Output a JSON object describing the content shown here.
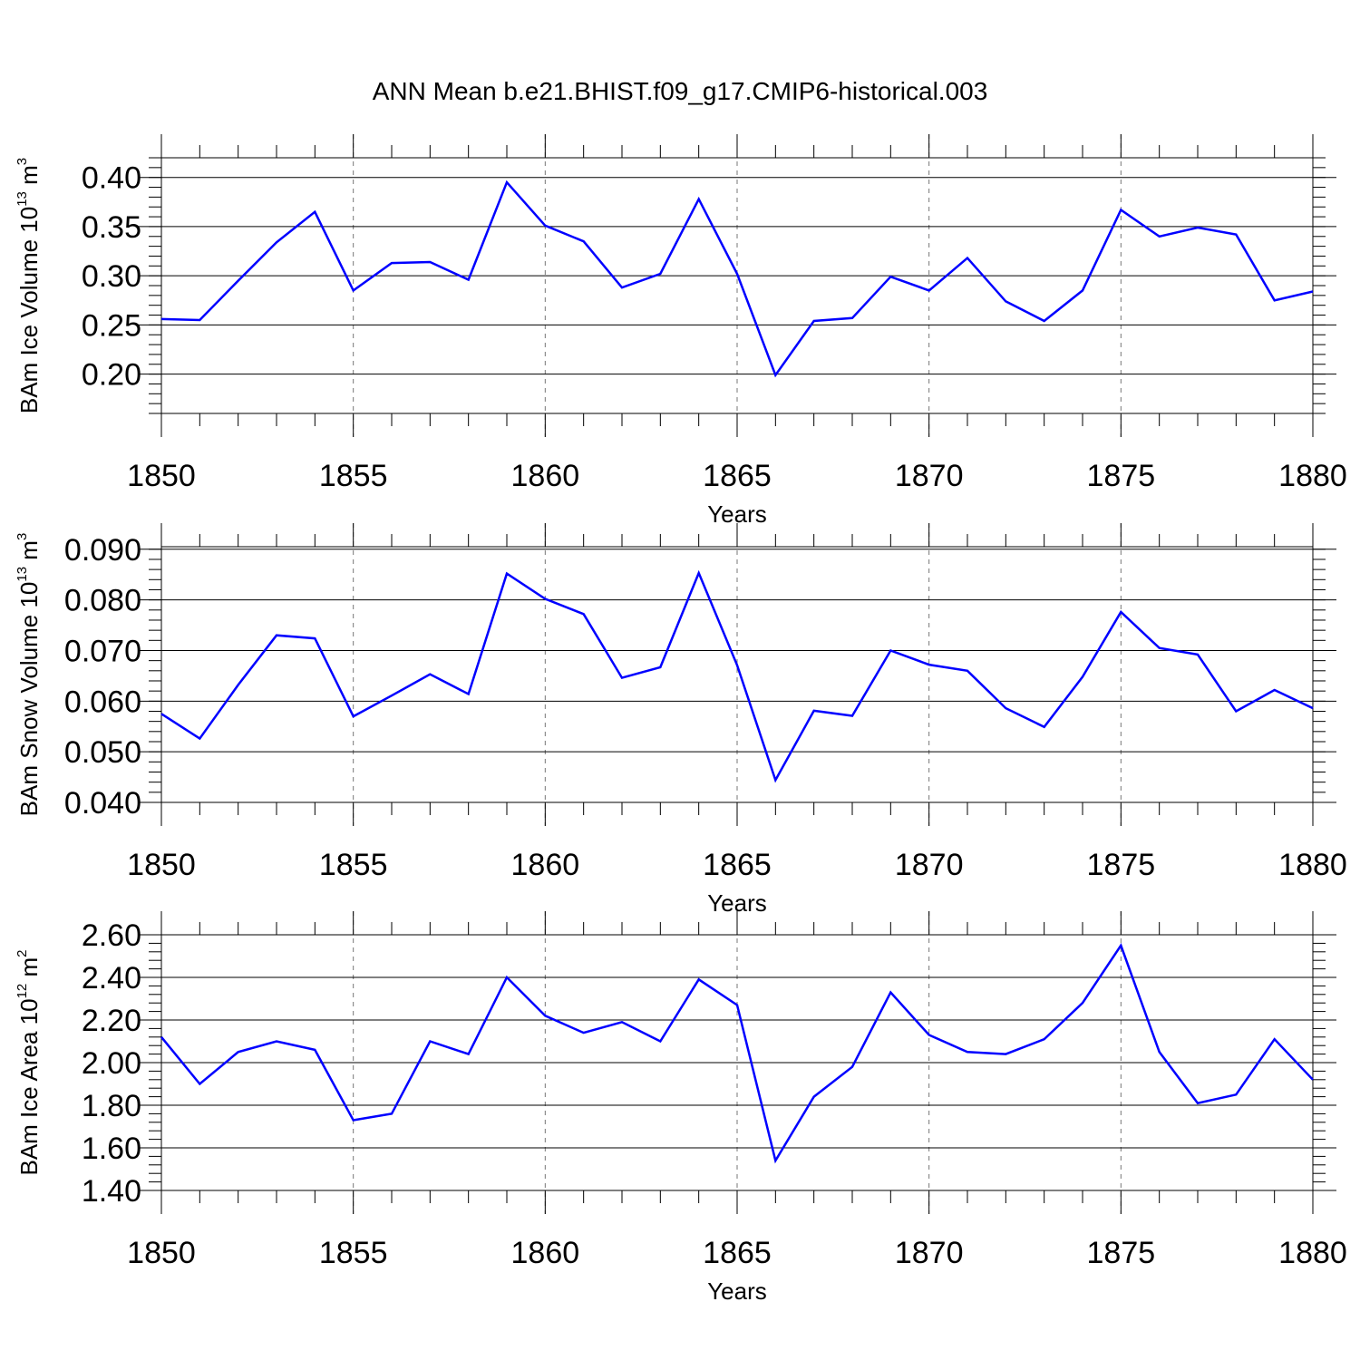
{
  "title": "ANN Mean b.e21.BHIST.f09_g17.CMIP6-historical.003",
  "colors": {
    "line": "#0000ff",
    "axis": "#000000",
    "grid": "#777777"
  },
  "chart_data": [
    {
      "type": "line",
      "title": "ANN Mean b.e21.BHIST.f09_g17.CMIP6-historical.003",
      "xlabel": "Years",
      "ylabel_text": "BAm Ice Volume 10",
      "ylabel_exp": "13",
      "ylabel_unit": " m",
      "ylabel_unit_exp": "3",
      "xlim": [
        1850,
        1880
      ],
      "ylim": [
        0.16,
        0.42
      ],
      "x_ticks": [
        1850,
        1855,
        1860,
        1865,
        1870,
        1875,
        1880
      ],
      "x_tick_labels": [
        "1850",
        "1855",
        "1860",
        "1865",
        "1870",
        "1875",
        "1880"
      ],
      "y_ticks": [
        0.2,
        0.25,
        0.3,
        0.35,
        0.4
      ],
      "y_tick_labels": [
        "0.20",
        "0.25",
        "0.30",
        "0.35",
        "0.40"
      ],
      "y_minor_step": 0.01,
      "x": [
        1850,
        1851,
        1852,
        1853,
        1854,
        1855,
        1856,
        1857,
        1858,
        1859,
        1860,
        1861,
        1862,
        1863,
        1864,
        1865,
        1866,
        1867,
        1868,
        1869,
        1870,
        1871,
        1872,
        1873,
        1874,
        1875,
        1876,
        1877,
        1878,
        1879,
        1880
      ],
      "series": [
        {
          "name": "BAm Ice Volume",
          "values": [
            0.256,
            0.255,
            0.295,
            0.334,
            0.365,
            0.285,
            0.313,
            0.314,
            0.296,
            0.395,
            0.351,
            0.335,
            0.288,
            0.302,
            0.378,
            0.302,
            0.199,
            0.254,
            0.257,
            0.299,
            0.285,
            0.318,
            0.274,
            0.254,
            0.285,
            0.367,
            0.34,
            0.349,
            0.342,
            0.275,
            0.284
          ]
        }
      ]
    },
    {
      "type": "line",
      "xlabel": "Years",
      "ylabel_text": "BAm Snow Volume 10",
      "ylabel_exp": "13",
      "ylabel_unit": " m",
      "ylabel_unit_exp": "3",
      "xlim": [
        1850,
        1880
      ],
      "ylim": [
        0.04,
        0.0905
      ],
      "x_ticks": [
        1850,
        1855,
        1860,
        1865,
        1870,
        1875,
        1880
      ],
      "x_tick_labels": [
        "1850",
        "1855",
        "1860",
        "1865",
        "1870",
        "1875",
        "1880"
      ],
      "y_ticks": [
        0.04,
        0.05,
        0.06,
        0.07,
        0.08,
        0.09
      ],
      "y_tick_labels": [
        "0.040",
        "0.050",
        "0.060",
        "0.070",
        "0.080",
        "0.090"
      ],
      "y_minor_step": 0.002,
      "x": [
        1850,
        1851,
        1852,
        1853,
        1854,
        1855,
        1856,
        1857,
        1858,
        1859,
        1860,
        1861,
        1862,
        1863,
        1864,
        1865,
        1866,
        1867,
        1868,
        1869,
        1870,
        1871,
        1872,
        1873,
        1874,
        1875,
        1876,
        1877,
        1878,
        1879,
        1880
      ],
      "series": [
        {
          "name": "BAm Snow Volume",
          "values": [
            0.0575,
            0.0526,
            0.0632,
            0.073,
            0.0724,
            0.057,
            0.0611,
            0.0653,
            0.0614,
            0.0852,
            0.0802,
            0.0772,
            0.0646,
            0.0667,
            0.0853,
            0.0671,
            0.0444,
            0.0581,
            0.0571,
            0.07,
            0.0672,
            0.066,
            0.0586,
            0.0549,
            0.0648,
            0.0776,
            0.0705,
            0.0692,
            0.058,
            0.0622,
            0.0586
          ]
        }
      ]
    },
    {
      "type": "line",
      "xlabel": "Years",
      "ylabel_text": "BAm Ice Area 10",
      "ylabel_exp": "12",
      "ylabel_unit": " m",
      "ylabel_unit_exp": "2",
      "xlim": [
        1850,
        1880
      ],
      "ylim": [
        1.4,
        2.6
      ],
      "x_ticks": [
        1850,
        1855,
        1860,
        1865,
        1870,
        1875,
        1880
      ],
      "x_tick_labels": [
        "1850",
        "1855",
        "1860",
        "1865",
        "1870",
        "1875",
        "1880"
      ],
      "y_ticks": [
        1.4,
        1.6,
        1.8,
        2.0,
        2.2,
        2.4,
        2.6
      ],
      "y_tick_labels": [
        "1.40",
        "1.60",
        "1.80",
        "2.00",
        "2.20",
        "2.40",
        "2.60"
      ],
      "y_minor_step": 0.04,
      "x": [
        1850,
        1851,
        1852,
        1853,
        1854,
        1855,
        1856,
        1857,
        1858,
        1859,
        1860,
        1861,
        1862,
        1863,
        1864,
        1865,
        1866,
        1867,
        1868,
        1869,
        1870,
        1871,
        1872,
        1873,
        1874,
        1875,
        1876,
        1877,
        1878,
        1879,
        1880
      ],
      "series": [
        {
          "name": "BAm Ice Area",
          "values": [
            2.12,
            1.9,
            2.05,
            2.1,
            2.06,
            1.73,
            1.76,
            2.1,
            2.04,
            2.4,
            2.22,
            2.14,
            2.19,
            2.1,
            2.39,
            2.27,
            1.54,
            1.84,
            1.98,
            2.33,
            2.13,
            2.05,
            2.04,
            2.11,
            2.28,
            2.55,
            2.05,
            1.81,
            1.85,
            2.11,
            1.92
          ]
        }
      ]
    }
  ]
}
